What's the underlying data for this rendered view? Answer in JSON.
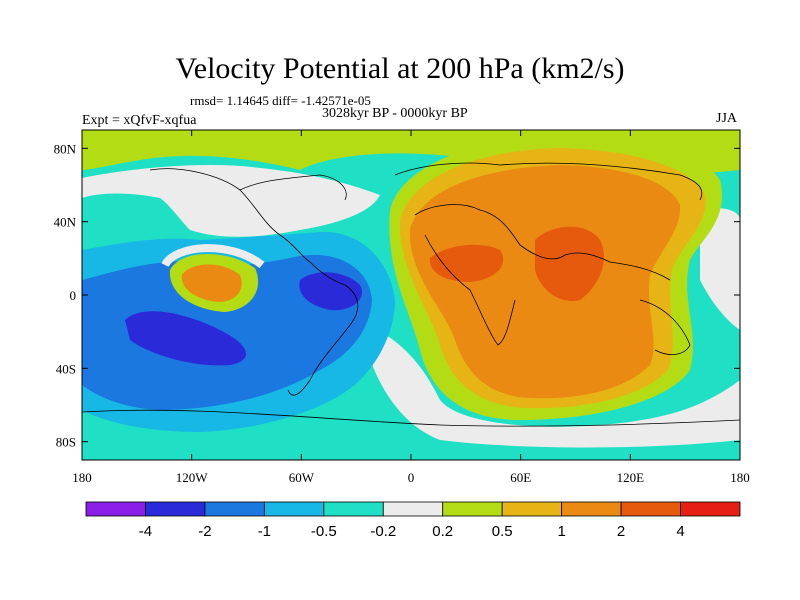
{
  "title": "Velocity Potential at 200 hPa (km2/s)",
  "stats": "rmsd= 1.14645 diff= -1.42571e-05",
  "period": "3028kyr BP - 0000kyr BP",
  "experiment": "Expt = xQfvF-xqfua",
  "season": "JJA",
  "map": {
    "projection": "cylindrical-equidistant",
    "lon_range": [
      -180,
      180
    ],
    "lat_range": [
      -90,
      90
    ],
    "x_ticks": [
      {
        "value": -180,
        "label": "180"
      },
      {
        "value": -120,
        "label": "120W"
      },
      {
        "value": -60,
        "label": "60W"
      },
      {
        "value": 0,
        "label": "0"
      },
      {
        "value": 60,
        "label": "60E"
      },
      {
        "value": 120,
        "label": "120E"
      },
      {
        "value": 180,
        "label": "180"
      }
    ],
    "y_ticks": [
      {
        "value": 80,
        "label": "80N"
      },
      {
        "value": 40,
        "label": "40N"
      },
      {
        "value": 0,
        "label": "0"
      },
      {
        "value": -40,
        "label": "40S"
      },
      {
        "value": -80,
        "label": "80S"
      }
    ]
  },
  "colorbar": {
    "levels": [
      "-4",
      "-2",
      "-1",
      "-0.5",
      "-0.2",
      "0.2",
      "0.5",
      "1",
      "2",
      "4"
    ],
    "colors": [
      "#8a1ee6",
      "#2a2ad8",
      "#1a78e0",
      "#17b8e6",
      "#1fe0c4",
      "#ececec",
      "#b4dc14",
      "#e6b414",
      "#ea8a12",
      "#e65a0e",
      "#e61e14"
    ]
  }
}
